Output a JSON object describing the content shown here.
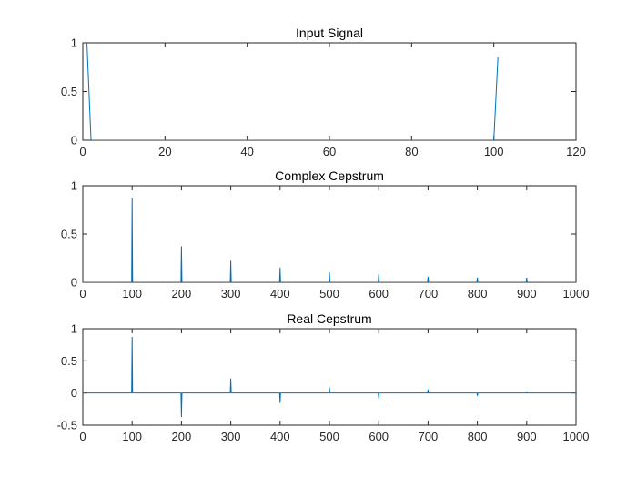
{
  "figure": {
    "background": "#ffffff",
    "axes_color": "#262626",
    "line_color": "#0072bd"
  },
  "chart_data": [
    {
      "type": "line",
      "title": "Input Signal",
      "xlabel": "",
      "ylabel": "",
      "xlim": [
        0,
        120
      ],
      "ylim": [
        0,
        1
      ],
      "xticks": [
        0,
        20,
        40,
        60,
        80,
        100,
        120
      ],
      "yticks": [
        0,
        0.5,
        1
      ],
      "xtick_labels": [
        "0",
        "20",
        "40",
        "60",
        "80",
        "100",
        "120"
      ],
      "ytick_labels": [
        "0",
        "0.5",
        "1"
      ],
      "grid": false,
      "series": [
        {
          "color": "#0072bd",
          "x": [
            1,
            2,
            3,
            100,
            101
          ],
          "y": [
            1,
            0,
            0,
            0,
            0.85
          ]
        }
      ]
    },
    {
      "type": "line",
      "title": "Complex Cepstrum",
      "xlabel": "",
      "ylabel": "",
      "xlim": [
        0,
        1000
      ],
      "ylim": [
        0,
        1
      ],
      "xticks": [
        0,
        100,
        200,
        300,
        400,
        500,
        600,
        700,
        800,
        900,
        1000
      ],
      "yticks": [
        0,
        0.5,
        1
      ],
      "xtick_labels": [
        "0",
        "100",
        "200",
        "300",
        "400",
        "500",
        "600",
        "700",
        "800",
        "900",
        "1000"
      ],
      "ytick_labels": [
        "0",
        "0.5",
        "1"
      ],
      "grid": false,
      "series": [
        {
          "color": "#0072bd",
          "x": [
            0,
            99,
            100,
            101,
            199,
            200,
            201,
            299,
            300,
            301,
            399,
            400,
            401,
            499,
            500,
            501,
            599,
            600,
            601,
            699,
            700,
            701,
            799,
            800,
            801,
            899,
            900,
            901,
            1000
          ],
          "y": [
            0,
            0,
            0.87,
            0,
            0,
            0.37,
            0,
            0,
            0.22,
            0,
            0,
            0.15,
            0,
            0,
            0.1,
            0,
            0,
            0.08,
            0,
            0,
            0.055,
            0,
            0,
            0.045,
            0,
            0,
            0.04,
            0,
            0
          ]
        }
      ]
    },
    {
      "type": "line",
      "title": "Real Cepstrum",
      "xlabel": "",
      "ylabel": "",
      "xlim": [
        0,
        1000
      ],
      "ylim": [
        -0.5,
        1
      ],
      "xticks": [
        0,
        100,
        200,
        300,
        400,
        500,
        600,
        700,
        800,
        900,
        1000
      ],
      "yticks": [
        -0.5,
        0,
        0.5,
        1
      ],
      "xtick_labels": [
        "0",
        "100",
        "200",
        "300",
        "400",
        "500",
        "600",
        "700",
        "800",
        "900",
        "1000"
      ],
      "ytick_labels": [
        "-0.5",
        "0",
        "0.5",
        "1"
      ],
      "grid": false,
      "series": [
        {
          "color": "#0072bd",
          "x": [
            0,
            99,
            100,
            101,
            199,
            200,
            201,
            299,
            300,
            301,
            399,
            400,
            401,
            499,
            500,
            501,
            599,
            600,
            601,
            699,
            700,
            701,
            799,
            800,
            801,
            899,
            900,
            901,
            1000
          ],
          "y": [
            0,
            0,
            0.87,
            0,
            0,
            -0.37,
            0,
            0,
            0.22,
            0,
            0,
            -0.15,
            0,
            0,
            0.08,
            0,
            0,
            -0.08,
            0,
            0,
            0.05,
            0,
            0,
            -0.04,
            0,
            0,
            0.02,
            0,
            0
          ]
        }
      ]
    }
  ]
}
